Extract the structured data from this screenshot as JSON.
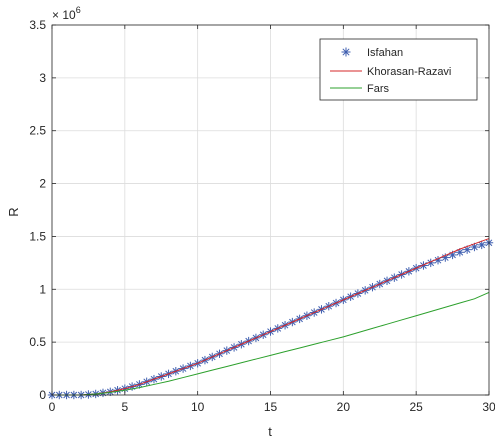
{
  "chart_data": {
    "type": "line",
    "xlabel": "t",
    "ylabel": "R",
    "exponent_label": "× 10",
    "exponent_power": "6",
    "xlim": [
      0,
      30
    ],
    "ylim": [
      0,
      3.5
    ],
    "xticks": [
      "0",
      "5",
      "10",
      "15",
      "20",
      "25",
      "30"
    ],
    "yticks": [
      "0",
      "0.5",
      "1",
      "1.5",
      "2",
      "2.5",
      "3",
      "3.5"
    ],
    "grid": true,
    "legend_position": "top-right",
    "series": [
      {
        "name": "Isfahan",
        "style": "markers",
        "marker": "asterisk",
        "color": "#3f5fb0",
        "x": [
          0,
          0.5,
          1,
          1.5,
          2,
          2.5,
          3,
          3.5,
          4,
          4.5,
          5,
          5.5,
          6,
          6.5,
          7,
          7.5,
          8,
          8.5,
          9,
          9.5,
          10,
          10.5,
          11,
          11.5,
          12,
          12.5,
          13,
          13.5,
          14,
          14.5,
          15,
          15.5,
          16,
          16.5,
          17,
          17.5,
          18,
          18.5,
          19,
          19.5,
          20,
          20.5,
          21,
          21.5,
          22,
          22.5,
          23,
          23.5,
          24,
          24.5,
          25,
          25.5,
          26,
          26.5,
          27,
          27.5,
          28,
          28.5,
          29,
          29.5,
          30
        ],
        "y": [
          0.0,
          0.0,
          0.0,
          0.0,
          0.0,
          0.005,
          0.01,
          0.02,
          0.03,
          0.045,
          0.06,
          0.08,
          0.1,
          0.125,
          0.15,
          0.175,
          0.2,
          0.225,
          0.25,
          0.275,
          0.3,
          0.33,
          0.36,
          0.39,
          0.42,
          0.45,
          0.48,
          0.51,
          0.54,
          0.57,
          0.6,
          0.63,
          0.66,
          0.69,
          0.72,
          0.75,
          0.78,
          0.81,
          0.84,
          0.87,
          0.9,
          0.93,
          0.96,
          0.99,
          1.02,
          1.05,
          1.08,
          1.11,
          1.14,
          1.17,
          1.2,
          1.225,
          1.25,
          1.275,
          1.3,
          1.325,
          1.35,
          1.375,
          1.4,
          1.42,
          1.44
        ]
      },
      {
        "name": "Khorasan-Razavi",
        "style": "line",
        "color": "#d62728",
        "x": [
          0,
          1,
          2,
          3,
          4,
          5,
          6,
          7,
          8,
          9,
          10,
          11,
          12,
          13,
          14,
          15,
          16,
          17,
          18,
          19,
          20,
          21,
          22,
          23,
          24,
          25,
          26,
          27,
          28,
          29,
          30
        ],
        "y": [
          0.0,
          0.0,
          0.0,
          0.01,
          0.03,
          0.06,
          0.1,
          0.15,
          0.2,
          0.25,
          0.3,
          0.36,
          0.42,
          0.48,
          0.54,
          0.6,
          0.66,
          0.72,
          0.78,
          0.84,
          0.9,
          0.96,
          1.02,
          1.08,
          1.14,
          1.2,
          1.26,
          1.32,
          1.38,
          1.43,
          1.48
        ]
      },
      {
        "name": "Fars",
        "style": "line",
        "color": "#2ca02c",
        "x": [
          0,
          1,
          2,
          3,
          4,
          5,
          6,
          7,
          8,
          9,
          10,
          11,
          12,
          13,
          14,
          15,
          16,
          17,
          18,
          19,
          20,
          21,
          22,
          23,
          24,
          25,
          26,
          27,
          28,
          29,
          30
        ],
        "y": [
          0.0,
          0.0,
          0.0,
          0.01,
          0.025,
          0.045,
          0.07,
          0.1,
          0.13,
          0.165,
          0.2,
          0.235,
          0.27,
          0.305,
          0.34,
          0.375,
          0.41,
          0.445,
          0.48,
          0.515,
          0.55,
          0.59,
          0.63,
          0.67,
          0.71,
          0.75,
          0.79,
          0.83,
          0.87,
          0.91,
          0.97
        ]
      }
    ]
  }
}
